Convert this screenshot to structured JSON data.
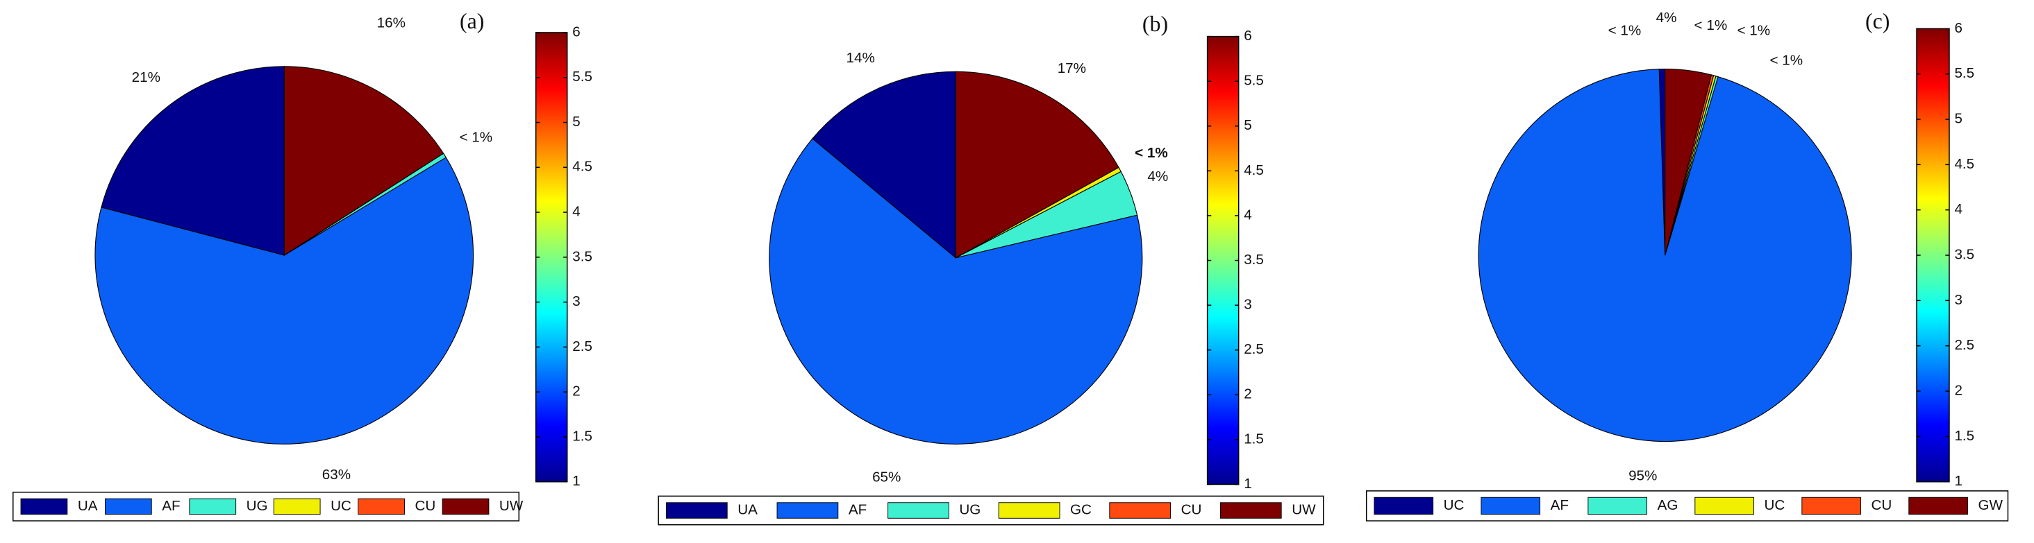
{
  "chart_data": [
    {
      "type": "pie",
      "title": "(a)",
      "categories": [
        "UA",
        "AF",
        "UG",
        "UC",
        "CU",
        "UW"
      ],
      "values": [
        21,
        63,
        0.4,
        null,
        null,
        16
      ],
      "value_labels": [
        "21%",
        "63%",
        "< 1%",
        null,
        null,
        "16%"
      ],
      "colors": [
        "#00008f",
        "#0a5ff5",
        "#3ff0d0",
        "#f0f000",
        "#ff4a10",
        "#7f0000"
      ],
      "colorbar_lim": [
        1,
        6
      ],
      "colorbar_ticks": [
        1,
        1.5,
        2,
        2.5,
        3,
        3.5,
        4,
        4.5,
        5,
        5.5,
        6
      ]
    },
    {
      "type": "pie",
      "title": "(b)",
      "categories": [
        "UA",
        "AF",
        "UG",
        "GC",
        "CU",
        "UW"
      ],
      "values": [
        14,
        65,
        4,
        0.4,
        null,
        17
      ],
      "value_labels": [
        "14%",
        "65%",
        "4%",
        "< 1%",
        null,
        "17%"
      ],
      "colors": [
        "#00008f",
        "#0a5ff5",
        "#3ff0d0",
        "#f0f000",
        "#ff4a10",
        "#7f0000"
      ],
      "colorbar_lim": [
        1,
        6
      ],
      "colorbar_ticks": [
        1,
        1.5,
        2,
        2.5,
        3,
        3.5,
        4,
        4.5,
        5,
        5.5,
        6
      ]
    },
    {
      "type": "pie",
      "title": "(c)",
      "categories": [
        "UC",
        "AF",
        "AG",
        "UC",
        "CU",
        "GW"
      ],
      "values": [
        0.5,
        95,
        0.2,
        0.2,
        0.2,
        4
      ],
      "value_labels": [
        "< 1%",
        "95%",
        "< 1%",
        "< 1%",
        "< 1%",
        "4%"
      ],
      "colors": [
        "#00008f",
        "#0a5ff5",
        "#3ff0d0",
        "#f0f000",
        "#ff4a10",
        "#7f0000"
      ],
      "colorbar_lim": [
        1,
        6
      ],
      "colorbar_ticks": [
        1,
        1.5,
        2,
        2.5,
        3,
        3.5,
        4,
        4.5,
        5,
        5.5,
        6
      ]
    }
  ]
}
